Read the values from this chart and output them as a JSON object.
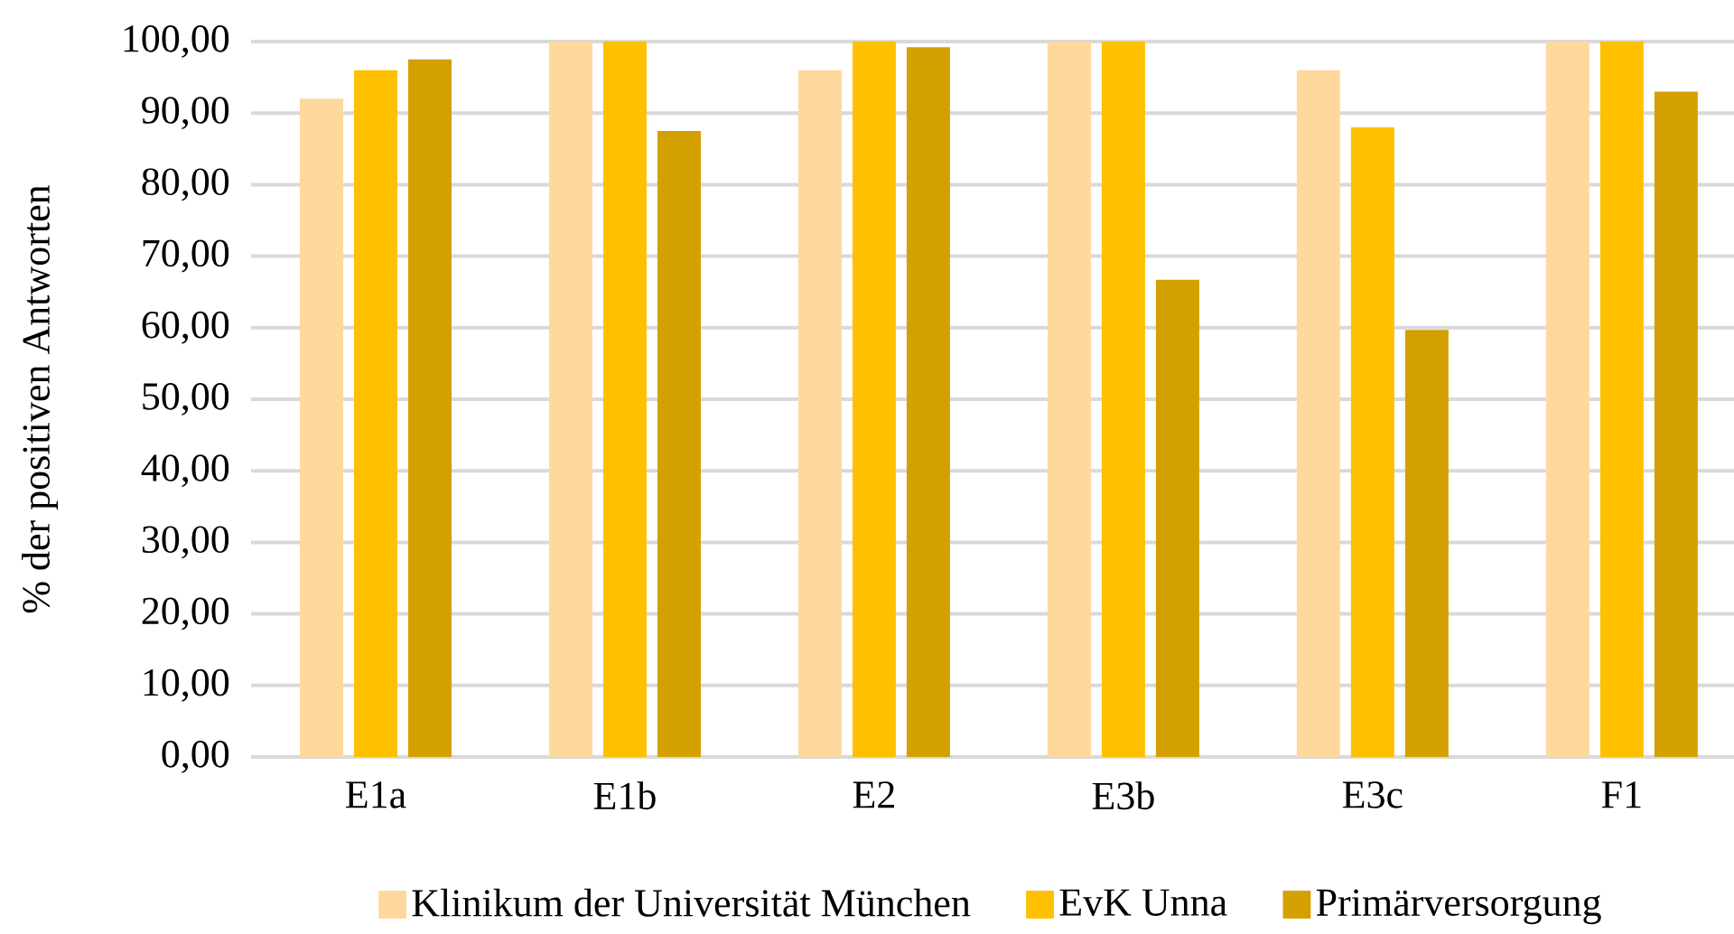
{
  "chart_data": {
    "type": "bar",
    "ylabel": "% der positiven Antworten",
    "categories": [
      "E1a",
      "E1b",
      "E2",
      "E3b",
      "E3c",
      "F1"
    ],
    "series": [
      {
        "name": "Klinikum der Universität München",
        "color": "#ffd89e",
        "values": [
          92,
          100,
          96,
          100,
          96,
          100
        ]
      },
      {
        "name": "EvK Unna",
        "color": "#ffc000",
        "values": [
          96,
          100,
          100,
          100,
          88,
          100
        ]
      },
      {
        "name": "Primärversorgung",
        "color": "#d4a000",
        "values": [
          97.5,
          87.5,
          99.2,
          66.7,
          59.7,
          93
        ]
      }
    ],
    "ylim": [
      0,
      100
    ],
    "yticks": [
      {
        "value": 0,
        "label": "0,00"
      },
      {
        "value": 10,
        "label": "10,00"
      },
      {
        "value": 20,
        "label": "20,00"
      },
      {
        "value": 30,
        "label": "30,00"
      },
      {
        "value": 40,
        "label": "40,00"
      },
      {
        "value": 50,
        "label": "50,00"
      },
      {
        "value": 60,
        "label": "60,00"
      },
      {
        "value": 70,
        "label": "70,00"
      },
      {
        "value": 80,
        "label": "80,00"
      },
      {
        "value": 90,
        "label": "90,00"
      },
      {
        "value": 100,
        "label": "100,00"
      }
    ],
    "grid": "y",
    "legend": "bottom"
  }
}
